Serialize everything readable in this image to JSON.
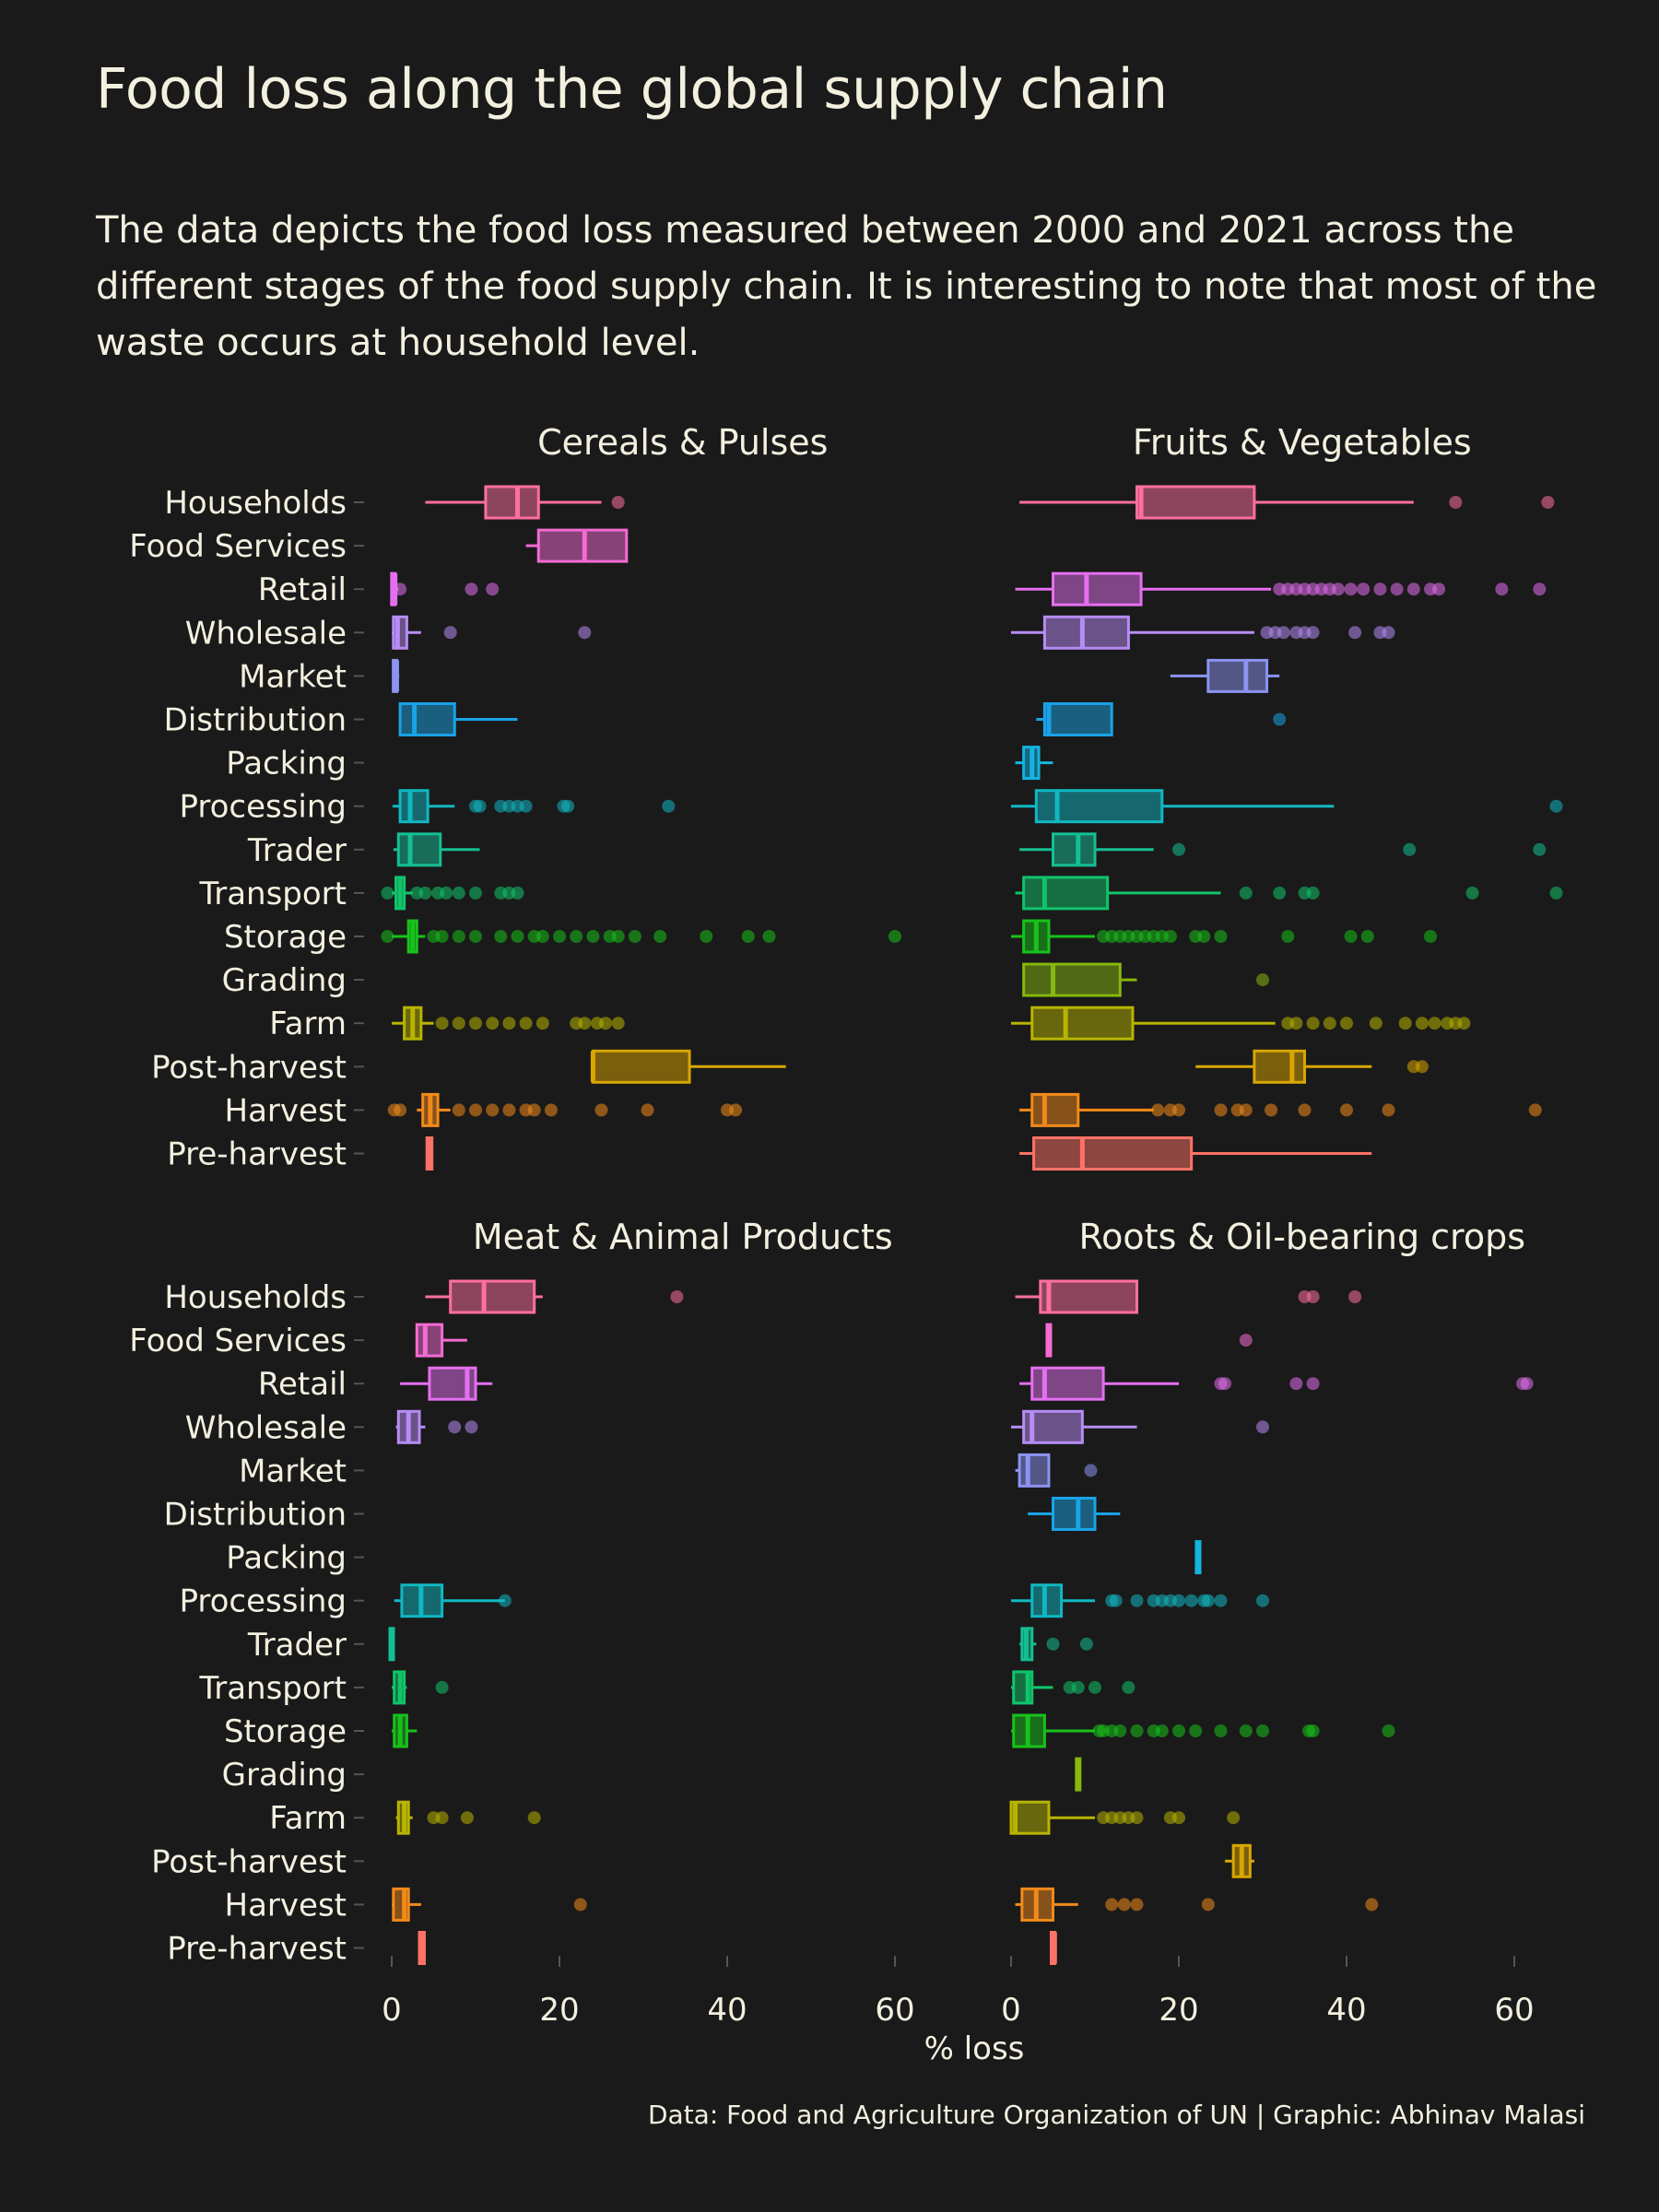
{
  "header": {
    "title": "Food loss along the global supply chain",
    "subtitle": "The data depicts the food loss measured between 2000 and 2021 across the different stages of the food supply chain. It is interesting to note that most of the waste occurs at household level."
  },
  "caption": "Data: Food and Agriculture Organization of UN | Graphic: Abhinav Malasi",
  "chart_data": {
    "type": "boxplot",
    "xlabel": "% loss",
    "xlim": [
      -3,
      68
    ],
    "xticks": [
      0,
      20,
      40,
      60
    ],
    "grid": false,
    "stages": [
      "Households",
      "Food Services",
      "Retail",
      "Wholesale",
      "Market",
      "Distribution",
      "Packing",
      "Processing",
      "Trader",
      "Transport",
      "Storage",
      "Grading",
      "Farm",
      "Post-harvest",
      "Harvest",
      "Pre-harvest"
    ],
    "colors": {
      "Households": "#ff6fa0",
      "Food Services": "#f46bd3",
      "Retail": "#e46ff0",
      "Wholesale": "#b78cf5",
      "Market": "#8c93f2",
      "Distribution": "#1aa3e6",
      "Packing": "#14b4e0",
      "Processing": "#10b8c2",
      "Trader": "#14bf94",
      "Transport": "#10c46a",
      "Storage": "#18c21a",
      "Grading": "#86b80e",
      "Farm": "#b8b400",
      "Post-harvest": "#d9a600",
      "Harvest": "#f28a1a",
      "Pre-harvest": "#ff7266"
    },
    "panels": [
      {
        "title": "Cereals & Pulses",
        "boxes": [
          {
            "stage": "Households",
            "min": 4,
            "q1": 11.2,
            "median": 15,
            "q3": 17.5,
            "max": 25,
            "outliers": [
              27
            ]
          },
          {
            "stage": "Food Services",
            "min": 16,
            "q1": 17.5,
            "median": 23,
            "q3": 28,
            "max": 28,
            "outliers": []
          },
          {
            "stage": "Retail",
            "min": 0.2,
            "q1": 0.2,
            "median": 0.4,
            "q3": 0.6,
            "max": 0.8,
            "outliers": [
              1,
              9.5,
              12
            ]
          },
          {
            "stage": "Wholesale",
            "min": 0,
            "q1": 0.2,
            "median": 0.7,
            "q3": 1.8,
            "max": 3.5,
            "outliers": [
              7,
              23
            ]
          },
          {
            "stage": "Market",
            "min": 0.4,
            "q1": 0.4,
            "median": 0.6,
            "q3": 0.8,
            "max": 0.9,
            "outliers": []
          },
          {
            "stage": "Distribution",
            "min": 1,
            "q1": 1,
            "median": 2.7,
            "q3": 7.5,
            "max": 15,
            "outliers": []
          },
          {
            "stage": "Processing",
            "min": 0.1,
            "q1": 1,
            "median": 2.2,
            "q3": 4.3,
            "max": 7.5,
            "outliers": [
              10,
              10.5,
              13,
              14,
              15,
              16,
              20.5,
              21,
              33
            ]
          },
          {
            "stage": "Trader",
            "min": 0.2,
            "q1": 0.8,
            "median": 2.2,
            "q3": 5.8,
            "max": 10.5,
            "outliers": []
          },
          {
            "stage": "Transport",
            "min": 0,
            "q1": 0.5,
            "median": 1,
            "q3": 1.5,
            "max": 2.5,
            "outliers": [
              -0.5,
              3,
              4,
              5.5,
              6.5,
              8,
              10,
              13,
              14,
              15
            ]
          },
          {
            "stage": "Storage",
            "min": 0,
            "q1": 2,
            "median": 2.5,
            "q3": 3,
            "max": 4,
            "outliers": [
              -0.5,
              5,
              6,
              8,
              10,
              13,
              15,
              17,
              18,
              20,
              22,
              24,
              26,
              27,
              29,
              32,
              37.5,
              42.5,
              45,
              60
            ]
          },
          {
            "stage": "Farm",
            "min": 0,
            "q1": 1.5,
            "median": 2.5,
            "q3": 3.5,
            "max": 5,
            "outliers": [
              6,
              8,
              10,
              12,
              14,
              16,
              18,
              22,
              23,
              24.5,
              25.5,
              27
            ]
          },
          {
            "stage": "Post-harvest",
            "min": 24,
            "q1": 24,
            "median": 24,
            "q3": 35.5,
            "max": 47,
            "outliers": []
          },
          {
            "stage": "Harvest",
            "min": 3,
            "q1": 3.7,
            "median": 4.6,
            "q3": 5.5,
            "max": 7,
            "outliers": [
              0.3,
              1,
              8,
              10,
              12,
              14,
              16,
              17,
              19,
              25,
              30.5,
              40,
              41
            ]
          },
          {
            "stage": "Pre-harvest",
            "min": 4.2,
            "q1": 4.2,
            "median": 4.5,
            "q3": 4.8,
            "max": 4.8,
            "outliers": []
          }
        ]
      },
      {
        "title": "Fruits & Vegetables",
        "boxes": [
          {
            "stage": "Households",
            "min": 1,
            "q1": 15,
            "median": 15.5,
            "q3": 29,
            "max": 48,
            "outliers": [
              53,
              64
            ]
          },
          {
            "stage": "Retail",
            "min": 0.5,
            "q1": 5,
            "median": 9,
            "q3": 15.5,
            "max": 31,
            "outliers": [
              32,
              33,
              34,
              35,
              36,
              37,
              38,
              39,
              40.5,
              42,
              44,
              46,
              48,
              50,
              51,
              58.5,
              63
            ]
          },
          {
            "stage": "Wholesale",
            "min": 0,
            "q1": 4,
            "median": 8.5,
            "q3": 14,
            "max": 29,
            "outliers": [
              30.5,
              31.5,
              32.5,
              34,
              35,
              36,
              41,
              44,
              45
            ]
          },
          {
            "stage": "Market",
            "min": 19,
            "q1": 23.5,
            "median": 28,
            "q3": 30.5,
            "max": 32,
            "outliers": []
          },
          {
            "stage": "Distribution",
            "min": 3,
            "q1": 4,
            "median": 4.5,
            "q3": 12,
            "max": 12,
            "outliers": [
              32
            ]
          },
          {
            "stage": "Packing",
            "min": 0.5,
            "q1": 1.5,
            "median": 2.5,
            "q3": 3.3,
            "max": 5,
            "outliers": []
          },
          {
            "stage": "Processing",
            "min": 0,
            "q1": 3,
            "median": 5.5,
            "q3": 18,
            "max": 38.5,
            "outliers": [
              65
            ]
          },
          {
            "stage": "Trader",
            "min": 1,
            "q1": 5,
            "median": 8,
            "q3": 10,
            "max": 17,
            "outliers": [
              20,
              47.5,
              63
            ]
          },
          {
            "stage": "Transport",
            "min": 0.5,
            "q1": 1.5,
            "median": 4,
            "q3": 11.5,
            "max": 25,
            "outliers": [
              28,
              32,
              35,
              36,
              55,
              65
            ]
          },
          {
            "stage": "Storage",
            "min": 0,
            "q1": 1.5,
            "median": 3,
            "q3": 4.5,
            "max": 10,
            "outliers": [
              11,
              12,
              13,
              14,
              15,
              16,
              17,
              18,
              19,
              22,
              23,
              25,
              33,
              40.5,
              42.5,
              50
            ]
          },
          {
            "stage": "Grading",
            "min": 1.5,
            "q1": 1.5,
            "median": 5,
            "q3": 13,
            "max": 15,
            "outliers": [
              30
            ]
          },
          {
            "stage": "Farm",
            "min": 0,
            "q1": 2.5,
            "median": 6.5,
            "q3": 14.5,
            "max": 31.5,
            "outliers": [
              33,
              34,
              36,
              38,
              40,
              43.5,
              47,
              49,
              50.5,
              52,
              53,
              54
            ]
          },
          {
            "stage": "Post-harvest",
            "min": 22,
            "q1": 29,
            "median": 33.5,
            "q3": 35,
            "max": 43,
            "outliers": [
              48,
              49
            ]
          },
          {
            "stage": "Harvest",
            "min": 1,
            "q1": 2.5,
            "median": 4,
            "q3": 8,
            "max": 17,
            "outliers": [
              17.5,
              19,
              20,
              25,
              27,
              28,
              31,
              35,
              40,
              45,
              62.5
            ]
          },
          {
            "stage": "Pre-harvest",
            "min": 1,
            "q1": 2.7,
            "median": 8.5,
            "q3": 21.5,
            "max": 43,
            "outliers": []
          }
        ]
      },
      {
        "title": "Meat & Animal Products",
        "boxes": [
          {
            "stage": "Households",
            "min": 4,
            "q1": 7,
            "median": 11,
            "q3": 17,
            "max": 18,
            "outliers": [
              34
            ]
          },
          {
            "stage": "Food Services",
            "min": 3,
            "q1": 3,
            "median": 4,
            "q3": 6,
            "max": 9,
            "outliers": []
          },
          {
            "stage": "Retail",
            "min": 1,
            "q1": 4.5,
            "median": 9,
            "q3": 10,
            "max": 12,
            "outliers": []
          },
          {
            "stage": "Wholesale",
            "min": 0.5,
            "q1": 0.8,
            "median": 2,
            "q3": 3.3,
            "max": 4,
            "outliers": [
              7.5,
              9.5
            ]
          },
          {
            "stage": "Processing",
            "min": 0.3,
            "q1": 1.2,
            "median": 3.5,
            "q3": 6,
            "max": 13.5,
            "outliers": [
              13.5
            ]
          },
          {
            "stage": "Trader",
            "min": 0,
            "q1": 0,
            "median": 0.1,
            "q3": 0.2,
            "max": 0.2,
            "outliers": []
          },
          {
            "stage": "Transport",
            "min": 0,
            "q1": 0.3,
            "median": 1,
            "q3": 1.5,
            "max": 1.8,
            "outliers": [
              6
            ]
          },
          {
            "stage": "Storage",
            "min": 0,
            "q1": 0.3,
            "median": 1,
            "q3": 1.8,
            "max": 3,
            "outliers": []
          },
          {
            "stage": "Farm",
            "min": 0.5,
            "q1": 0.8,
            "median": 1.5,
            "q3": 2,
            "max": 2.5,
            "outliers": [
              5,
              6,
              9,
              17
            ]
          },
          {
            "stage": "Harvest",
            "min": 0,
            "q1": 0.2,
            "median": 1.5,
            "q3": 2,
            "max": 3.5,
            "outliers": [
              22.5
            ]
          },
          {
            "stage": "Pre-harvest",
            "min": 3.3,
            "q1": 3.3,
            "median": 3.6,
            "q3": 3.9,
            "max": 3.9,
            "outliers": []
          }
        ]
      },
      {
        "title": "Roots & Oil-bearing crops",
        "boxes": [
          {
            "stage": "Households",
            "min": 0.5,
            "q1": 3.5,
            "median": 4.5,
            "q3": 15,
            "max": 15,
            "outliers": [
              35,
              36,
              41
            ]
          },
          {
            "stage": "Food Services",
            "min": 4.5,
            "q1": 4.5,
            "median": 4.6,
            "q3": 4.8,
            "max": 4.8,
            "outliers": [
              28
            ]
          },
          {
            "stage": "Retail",
            "min": 1,
            "q1": 2.5,
            "median": 4,
            "q3": 11,
            "max": 20,
            "outliers": [
              25,
              25.5,
              34,
              36,
              61,
              61.5
            ]
          },
          {
            "stage": "Wholesale",
            "min": 0,
            "q1": 1.5,
            "median": 2.5,
            "q3": 8.5,
            "max": 15,
            "outliers": [
              30
            ]
          },
          {
            "stage": "Market",
            "min": 0.5,
            "q1": 1,
            "median": 2,
            "q3": 4.5,
            "max": 4.5,
            "outliers": [
              9.5
            ]
          },
          {
            "stage": "Distribution",
            "min": 2,
            "q1": 5,
            "median": 8,
            "q3": 10,
            "max": 13,
            "outliers": []
          },
          {
            "stage": "Packing",
            "min": 22.3,
            "q1": 22.3,
            "median": 22.4,
            "q3": 22.5,
            "max": 22.5,
            "outliers": []
          },
          {
            "stage": "Processing",
            "min": 0,
            "q1": 2.5,
            "median": 4,
            "q3": 6,
            "max": 10,
            "outliers": [
              12,
              12.5,
              15,
              17,
              18,
              19,
              20,
              21.5,
              23,
              23.5,
              25,
              30
            ]
          },
          {
            "stage": "Trader",
            "min": 1,
            "q1": 1.3,
            "median": 1.8,
            "q3": 2.5,
            "max": 3,
            "outliers": [
              5,
              9
            ]
          },
          {
            "stage": "Transport",
            "min": 0,
            "q1": 0.3,
            "median": 2,
            "q3": 2.5,
            "max": 5,
            "outliers": [
              7,
              8,
              10,
              14
            ]
          },
          {
            "stage": "Storage",
            "min": 0,
            "q1": 0.3,
            "median": 2,
            "q3": 4,
            "max": 10,
            "outliers": [
              10.5,
              11,
              12,
              13,
              15,
              17,
              18,
              20,
              22,
              25,
              28,
              30,
              35.5,
              36,
              45
            ]
          },
          {
            "stage": "Grading",
            "min": 8,
            "q1": 8,
            "median": 8,
            "q3": 8.1,
            "max": 8.1,
            "outliers": []
          },
          {
            "stage": "Farm",
            "min": 0,
            "q1": 0,
            "median": 0.5,
            "q3": 4.5,
            "max": 10,
            "outliers": [
              11,
              12,
              13,
              14,
              15,
              19,
              20,
              26.5
            ]
          },
          {
            "stage": "Post-harvest",
            "min": 25.5,
            "q1": 26.5,
            "median": 27.5,
            "q3": 28.5,
            "max": 29,
            "outliers": []
          },
          {
            "stage": "Harvest",
            "min": 0.5,
            "q1": 1.3,
            "median": 3,
            "q3": 5,
            "max": 8,
            "outliers": [
              12,
              13.5,
              15,
              23.5,
              43
            ]
          },
          {
            "stage": "Pre-harvest",
            "min": 5,
            "q1": 5,
            "median": 5.2,
            "q3": 5.4,
            "max": 5.4,
            "outliers": []
          }
        ]
      }
    ]
  }
}
